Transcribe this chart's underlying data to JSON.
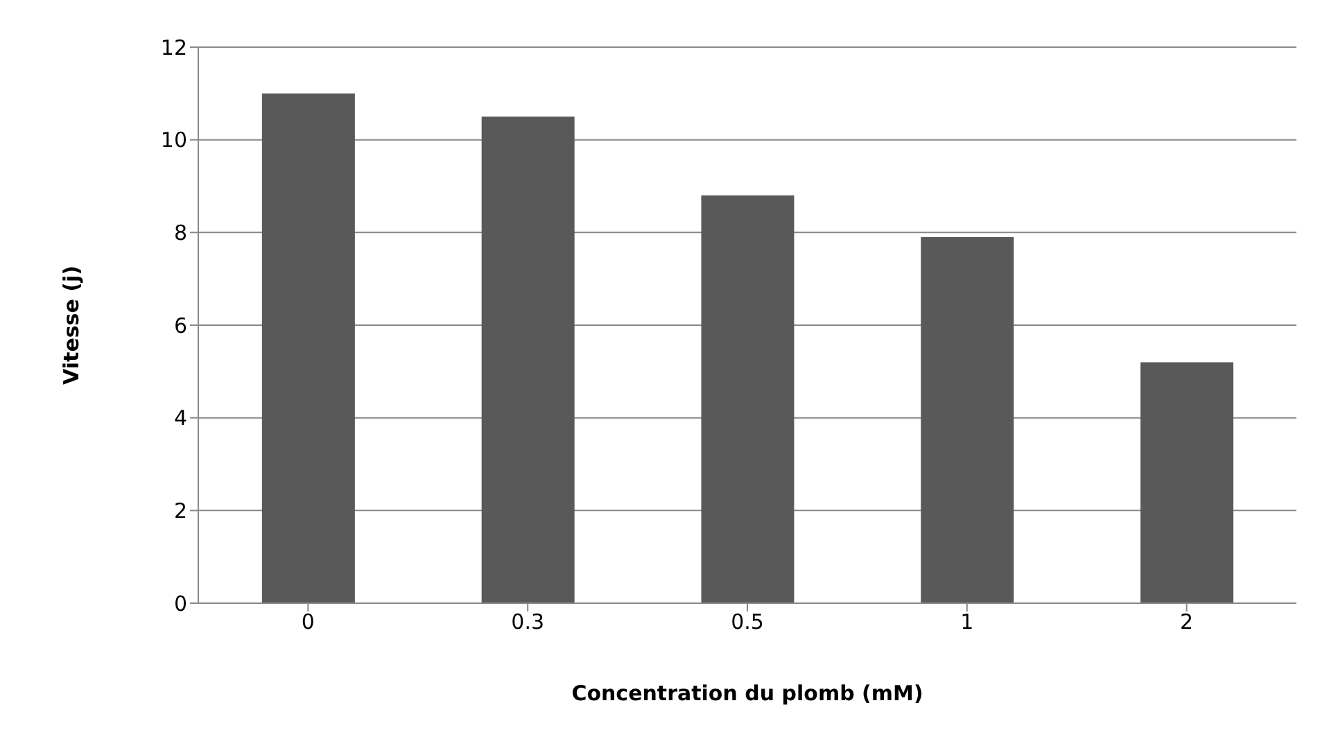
{
  "chart_data": {
    "type": "bar",
    "xlabel": "Concentration du plomb (mM)",
    "ylabel": "Vitesse (j)",
    "categories": [
      "0",
      "0.3",
      "0.5",
      "1",
      "2"
    ],
    "values": [
      11,
      10.5,
      8.8,
      7.9,
      5.2
    ],
    "color": "#595959",
    "ylim": [
      0,
      12
    ],
    "yticks": [
      0,
      2,
      4,
      6,
      8,
      10,
      12
    ],
    "grid": "y"
  }
}
